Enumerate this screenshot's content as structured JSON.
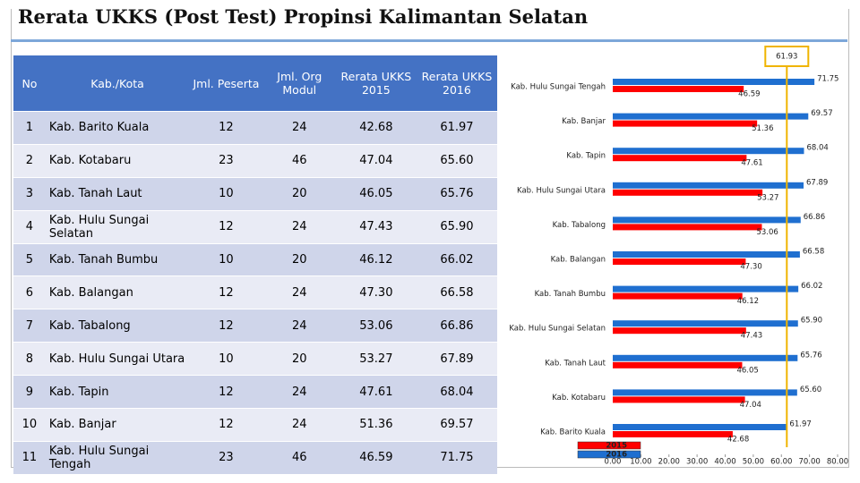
{
  "header": {
    "title": "Rerata UKKS (Post Test) Propinsi Kalimantan Selatan"
  },
  "table": {
    "columns": [
      "No",
      "Kab./Kota",
      "Jml. Peserta",
      "Jml. Org Modul",
      "Rerata UKKS 2015",
      "Rerata UKKS 2016"
    ],
    "rows": [
      [
        "1",
        "Kab. Barito Kuala",
        "12",
        "24",
        "42.68",
        "61.97"
      ],
      [
        "2",
        "Kab. Kotabaru",
        "23",
        "46",
        "47.04",
        "65.60"
      ],
      [
        "3",
        "Kab. Tanah Laut",
        "10",
        "20",
        "46.05",
        "65.76"
      ],
      [
        "4",
        "Kab. Hulu Sungai Selatan",
        "12",
        "24",
        "47.43",
        "65.90"
      ],
      [
        "5",
        "Kab. Tanah Bumbu",
        "10",
        "20",
        "46.12",
        "66.02"
      ],
      [
        "6",
        "Kab. Balangan",
        "12",
        "24",
        "47.30",
        "66.58"
      ],
      [
        "7",
        "Kab. Tabalong",
        "12",
        "24",
        "53.06",
        "66.86"
      ],
      [
        "8",
        "Kab. Hulu Sungai Utara",
        "10",
        "20",
        "53.27",
        "67.89"
      ],
      [
        "9",
        "Kab. Tapin",
        "12",
        "24",
        "47.61",
        "68.04"
      ],
      [
        "10",
        "Kab. Banjar",
        "12",
        "24",
        "51.36",
        "69.57"
      ],
      [
        "11",
        "Kab. Hulu Sungai Tengah",
        "23",
        "46",
        "46.59",
        "71.75"
      ]
    ]
  },
  "chart_data": {
    "type": "hbar",
    "categories": [
      "Kab. Hulu Sungai Tengah",
      "Kab. Banjar",
      "Kab. Tapin",
      "Kab. Hulu Sungai Utara",
      "Kab. Tabalong",
      "Kab. Balangan",
      "Kab. Tanah Bumbu",
      "Kab. Hulu Sungai Selatan",
      "Kab. Tanah Laut",
      "Kab. Kotabaru",
      "Kab. Barito Kuala"
    ],
    "series": [
      {
        "name": "2015",
        "color": "#ff0000",
        "values": [
          46.59,
          51.36,
          47.61,
          53.27,
          53.06,
          47.3,
          46.12,
          47.43,
          46.05,
          47.04,
          42.68
        ],
        "value_labels": [
          "46.59",
          "51.36",
          "47.61",
          "53.27",
          "53.06",
          "47.30",
          "46.12",
          "47.43",
          "46.05",
          "47.04",
          "42.68"
        ]
      },
      {
        "name": "2016",
        "color": "#1f6fd0",
        "values": [
          71.75,
          69.57,
          68.04,
          67.89,
          66.86,
          66.58,
          66.02,
          65.9,
          65.76,
          65.6,
          61.97
        ],
        "value_labels": [
          "71.75",
          "69.57",
          "68.04",
          "67.89",
          "66.86",
          "66.58",
          "66.02",
          "65.90",
          "65.76",
          "65.60",
          "61.97"
        ]
      }
    ],
    "reference_line": 61.93,
    "xlim": [
      0,
      80
    ],
    "xticks": [
      {
        "value": 0,
        "label": "0.00"
      },
      {
        "value": 10,
        "label": "10.00"
      },
      {
        "value": 20,
        "label": "20.00"
      },
      {
        "value": 30,
        "label": "30.00"
      },
      {
        "value": 40,
        "label": "40.00"
      },
      {
        "value": 50,
        "label": "50.00"
      },
      {
        "value": 60,
        "label": "60.00"
      },
      {
        "value": 70,
        "label": "70.00"
      },
      {
        "value": 80,
        "label": "80.00"
      }
    ]
  }
}
